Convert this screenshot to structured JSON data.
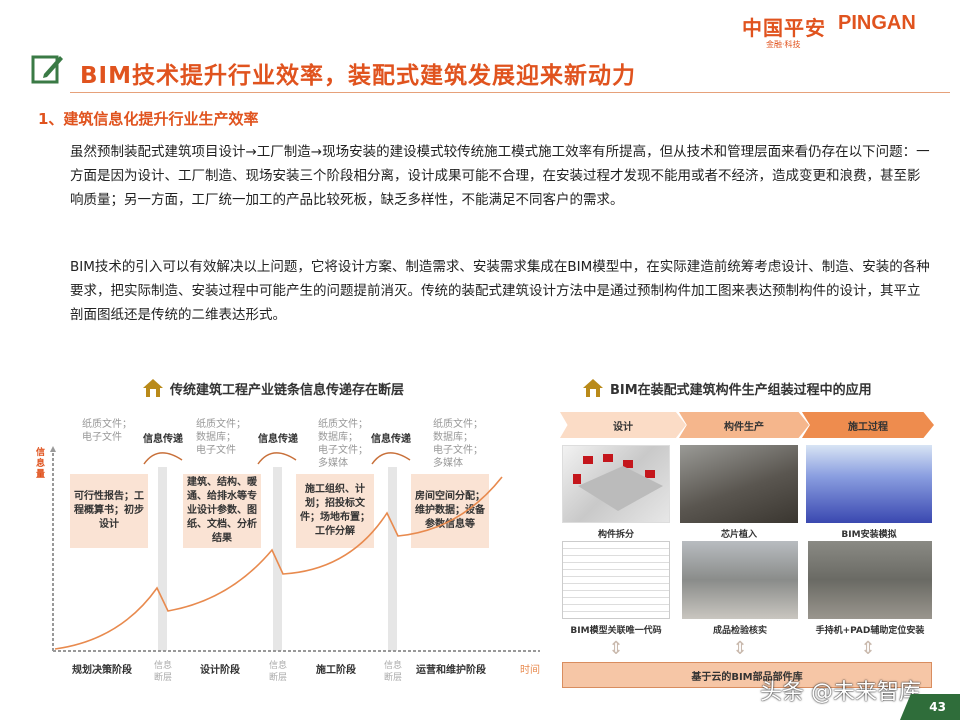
{
  "header": {
    "logo_cn": "中国平安",
    "logo_en": "PINGAN",
    "logo_sub": "金融·科技",
    "title": "BIM技术提升行业效率，装配式建筑发展迎来新动力"
  },
  "section": {
    "heading": "1、建筑信息化提升行业生产效率",
    "paragraphs": [
      "虽然预制装配式建筑项目设计→工厂制造→现场安装的建设模式较传统施工模式施工效率有所提高，但从技术和管理层面来看仍存在以下问题：一方面是因为设计、工厂制造、现场安装三个阶段相分离，设计成果可能不合理，在安装过程才发现不能用或者不经济，造成变更和浪费，甚至影响质量；另一方面，工厂统一加工的产品比较死板，缺乏多样性，不能满足不同客户的需求。",
      "BIM技术的引入可以有效解决以上问题，它将设计方案、制造需求、安装需求集成在BIM模型中，在实际建造前统筹考虑设计、制造、安装的各种要求，把实际制造、安装过程中可能产生的问题提前消灭。传统的装配式建筑设计方法中是通过预制构件加工图来表达预制构件的设计，其平立剖面图纸还是传统的二维表达形式。"
    ]
  },
  "left_diagram": {
    "title": "传统建筑工程产业链条信息传递存在断层",
    "y_label": "信息量",
    "x_label": "时间",
    "doc_types": [
      "纸质文件；\n电子文件",
      "纸质文件；\n数据库；\n电子文件",
      "纸质文件；\n数据库；\n电子文件；\n多媒体",
      "纸质文件；\n数据库；\n电子文件；\n多媒体"
    ],
    "transfer_label": "信息传递",
    "boxes": [
      "可行性报告；工程概算书；初步设计",
      "建筑、结构、暖通、给排水等专业设计参数、图纸、文档、分析结果",
      "施工组织、计划；招投标文件；场地布置；工作分解",
      "房间空间分配；维护数据；设备参数信息等"
    ],
    "stages": [
      "规划决策阶段",
      "设计阶段",
      "施工阶段",
      "运营和维护阶段"
    ],
    "break_label": "信息断层"
  },
  "right_diagram": {
    "title": "BIM在装配式建筑构件生产组装过程中的应用",
    "phases": [
      "设计",
      "构件生产",
      "施工过程"
    ],
    "captions_row1": [
      "构件拆分",
      "芯片植入",
      "BIM安装模拟"
    ],
    "captions_row2": [
      "BIM模型关联唯一代码",
      "成品检验核实",
      "手持机+PAD辅助定位安装"
    ],
    "base": "基于云的BIM部品部件库"
  },
  "watermark": "头条 @未来智库",
  "page_number": "43",
  "colors": {
    "accent": "#e0531e",
    "green": "#2f6d3a",
    "box": "#fae3d4"
  }
}
